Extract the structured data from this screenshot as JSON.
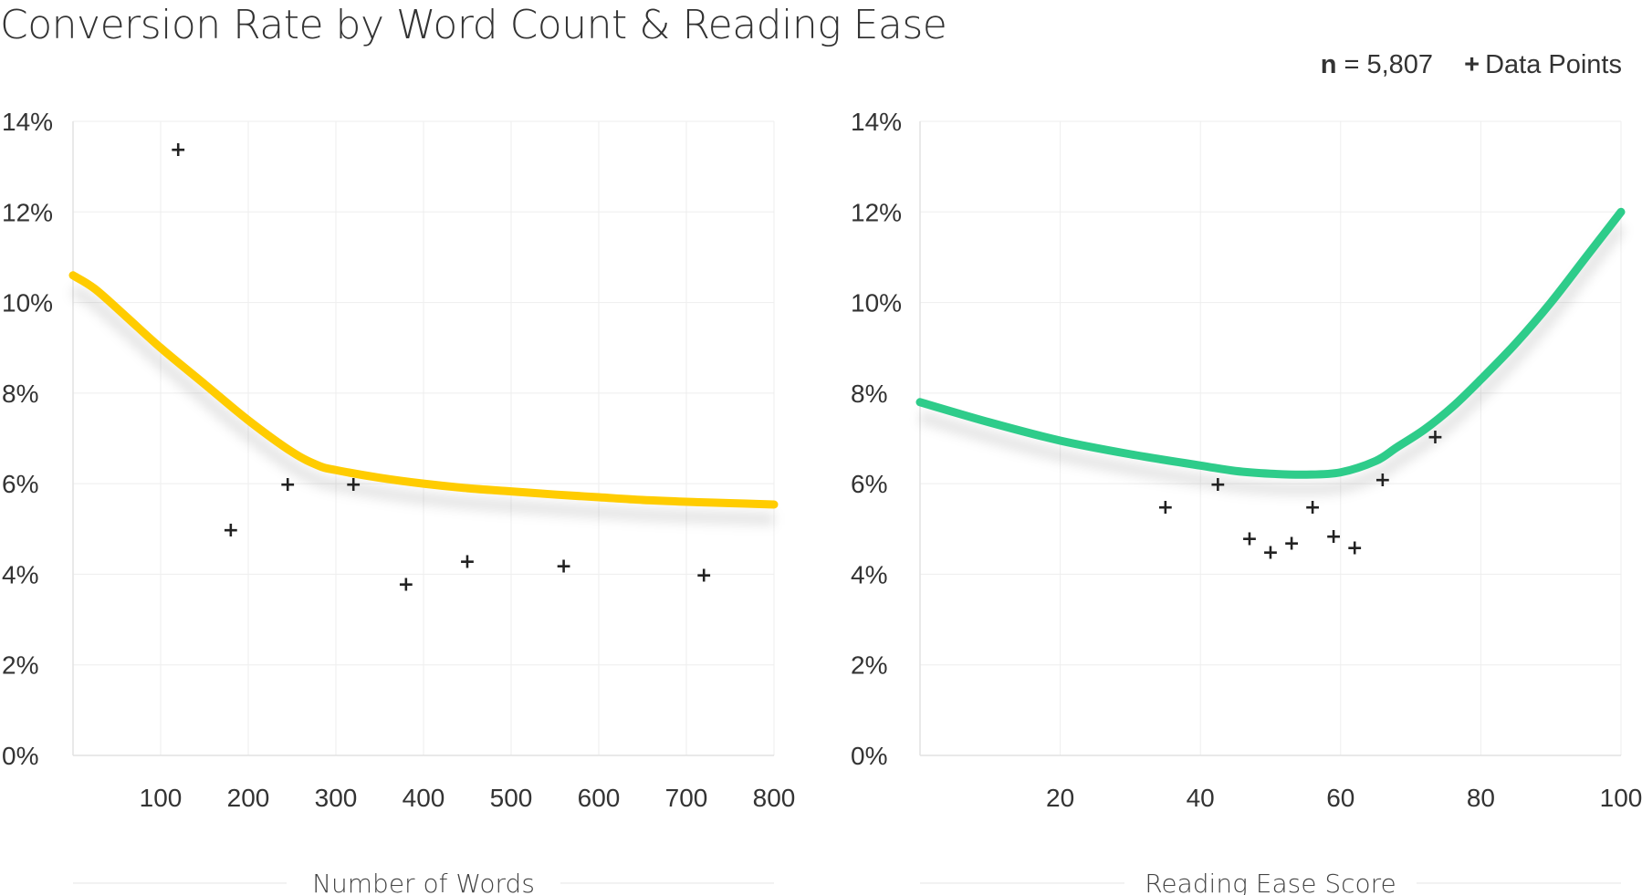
{
  "title": "Conversion Rate by Word Count & Reading Ease",
  "meta": {
    "n_symbol": "n",
    "n_text": "= 5,807",
    "legend_symbol": "+",
    "legend_label": "Data Points"
  },
  "colors": {
    "left_curve": "#FFCC00",
    "right_curve": "#2ECC8A",
    "markers": "#222222",
    "grid": "#eeeeee"
  },
  "chart_data": [
    {
      "type": "scatter",
      "xlabel": "Number of Words",
      "ylabel": "",
      "xlim": [
        0,
        800
      ],
      "ylim": [
        0,
        14
      ],
      "x_ticks": [
        100,
        200,
        300,
        400,
        500,
        600,
        700,
        800
      ],
      "x_tick_labels": [
        "100",
        "200",
        "300",
        "400",
        "500",
        "600",
        "700",
        "800"
      ],
      "y_ticks": [
        0,
        2,
        4,
        6,
        8,
        10,
        12,
        14
      ],
      "y_tick_labels": [
        "0%",
        "2%",
        "4%",
        "6%",
        "8%",
        "10%",
        "12%",
        "14%"
      ],
      "points": [
        {
          "x": 120,
          "y": 13.4
        },
        {
          "x": 180,
          "y": 5.0
        },
        {
          "x": 245,
          "y": 6.0
        },
        {
          "x": 320,
          "y": 6.0
        },
        {
          "x": 380,
          "y": 3.8
        },
        {
          "x": 450,
          "y": 4.3
        },
        {
          "x": 560,
          "y": 4.2
        },
        {
          "x": 720,
          "y": 4.0
        }
      ],
      "trend": {
        "color": "#FFCC00",
        "x": [
          0,
          25,
          60,
          100,
          150,
          200,
          250,
          280,
          300,
          350,
          400,
          450,
          500,
          550,
          600,
          650,
          700,
          750,
          800
        ],
        "y": [
          10.6,
          10.3,
          9.7,
          9.0,
          8.2,
          7.4,
          6.7,
          6.4,
          6.3,
          6.13,
          6.0,
          5.9,
          5.83,
          5.76,
          5.7,
          5.64,
          5.6,
          5.57,
          5.54
        ]
      }
    },
    {
      "type": "scatter",
      "xlabel": "Reading Ease Score",
      "ylabel": "",
      "xlim": [
        0,
        100
      ],
      "ylim": [
        0,
        14
      ],
      "x_ticks": [
        20,
        40,
        60,
        80,
        100
      ],
      "x_tick_labels": [
        "20",
        "40",
        "60",
        "80",
        "100"
      ],
      "y_ticks": [
        0,
        2,
        4,
        6,
        8,
        10,
        12,
        14
      ],
      "y_tick_labels": [
        "0%",
        "2%",
        "4%",
        "6%",
        "8%",
        "10%",
        "12%",
        "14%"
      ],
      "points": [
        {
          "x": 35,
          "y": 5.5
        },
        {
          "x": 42.5,
          "y": 6.0
        },
        {
          "x": 47,
          "y": 4.8
        },
        {
          "x": 50,
          "y": 4.5
        },
        {
          "x": 53,
          "y": 4.7
        },
        {
          "x": 56,
          "y": 5.5
        },
        {
          "x": 59,
          "y": 4.85
        },
        {
          "x": 62,
          "y": 4.6
        },
        {
          "x": 66,
          "y": 6.1
        },
        {
          "x": 73.5,
          "y": 7.05
        }
      ],
      "trend": {
        "color": "#2ECC8A",
        "x": [
          0,
          10,
          20,
          30,
          40,
          45,
          50,
          55,
          60,
          65,
          68,
          72,
          76,
          80,
          85,
          90,
          95,
          100
        ],
        "y": [
          7.8,
          7.35,
          6.95,
          6.65,
          6.4,
          6.28,
          6.22,
          6.2,
          6.25,
          6.5,
          6.8,
          7.2,
          7.7,
          8.3,
          9.1,
          10.0,
          11.0,
          12.0
        ]
      }
    }
  ]
}
